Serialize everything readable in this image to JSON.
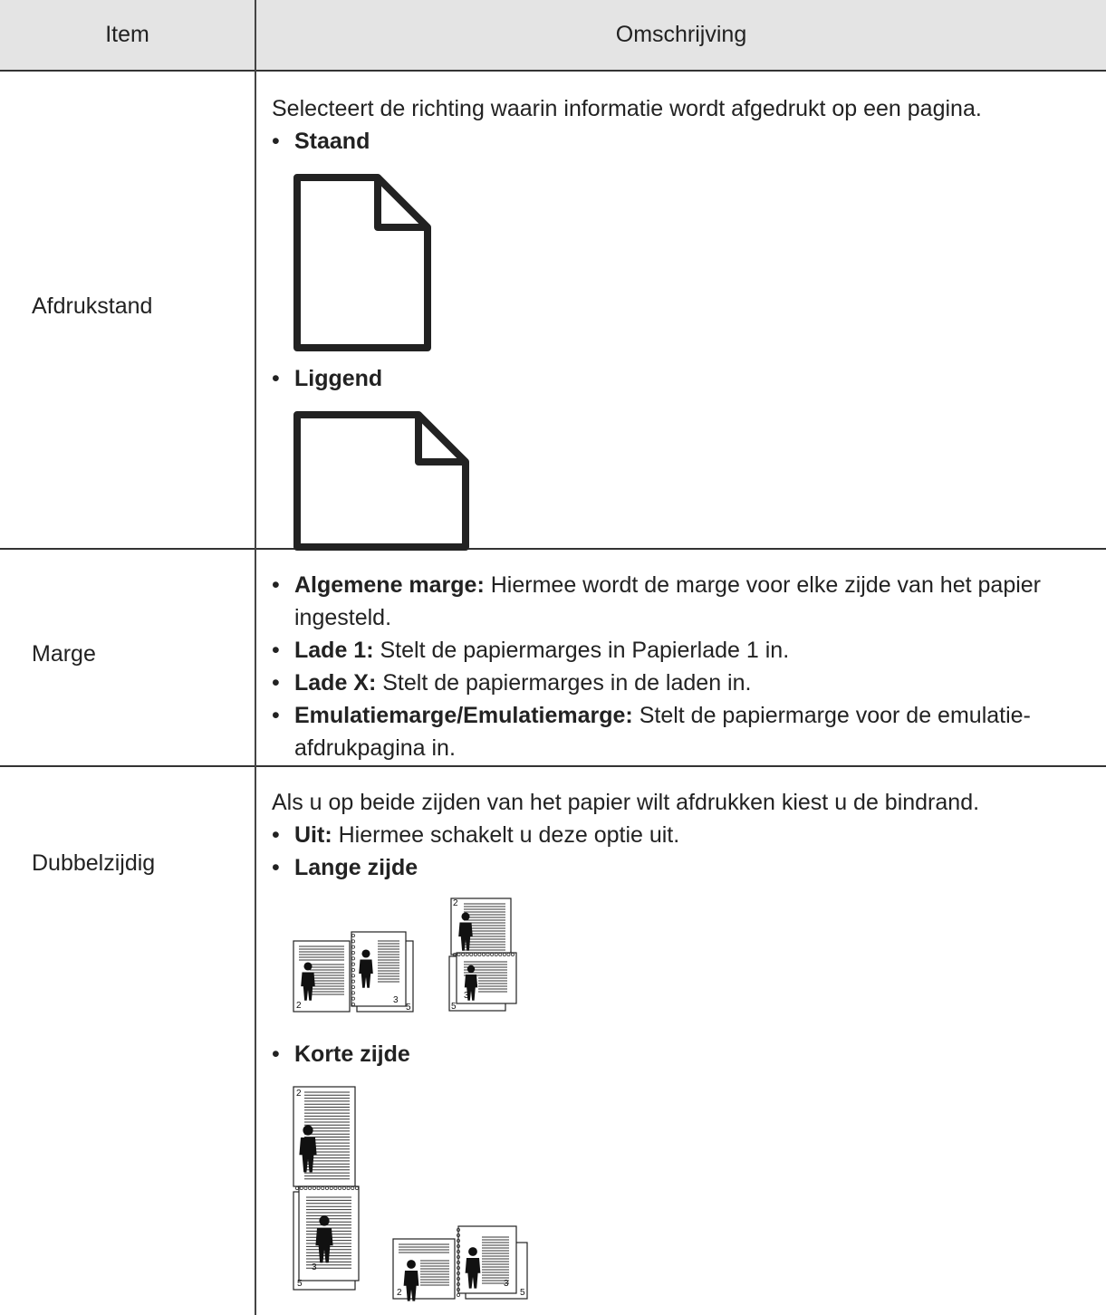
{
  "table": {
    "header": [
      "Item",
      "Omschrijving"
    ],
    "rows": [
      {
        "item": "Afdrukstand",
        "intro": "Selecteert de richting waarin informatie wordt afgedrukt op een pagina.",
        "bullets": [
          {
            "label": "Staand"
          },
          {
            "label": "Liggend"
          }
        ]
      },
      {
        "item": "Marge",
        "bullets": [
          {
            "label": "Algemene marge:",
            "text": "Hiermee wordt de marge voor elke zijde van het papier ingesteld."
          },
          {
            "label": "Lade 1:",
            "text": "Stelt de papiermarges in Papierlade 1 in."
          },
          {
            "label": "Lade X:",
            "text": "Stelt de papiermarges in de laden in."
          },
          {
            "label": "Emulatiemarge/Emulatiemarge:",
            "text": "Stelt de papiermarge voor de emulatie-afdrukpagina in."
          }
        ]
      },
      {
        "item": "Dubbelzijdig",
        "intro": "Als u op beide zijden van het papier wilt afdrukken kiest u de bindrand.",
        "bullets": [
          {
            "label": "Uit:",
            "text": "Hiermee schakelt u deze optie uit."
          },
          {
            "label": "Lange zijde",
            "figure_numbers": [
              [
                "2",
                "3",
                "5"
              ],
              [
                "2",
                "3",
                "5"
              ]
            ]
          },
          {
            "label": "Korte zijde",
            "figure_numbers": [
              [
                "2",
                "3",
                "5"
              ],
              [
                "2",
                "3",
                "5"
              ]
            ]
          }
        ]
      }
    ]
  }
}
